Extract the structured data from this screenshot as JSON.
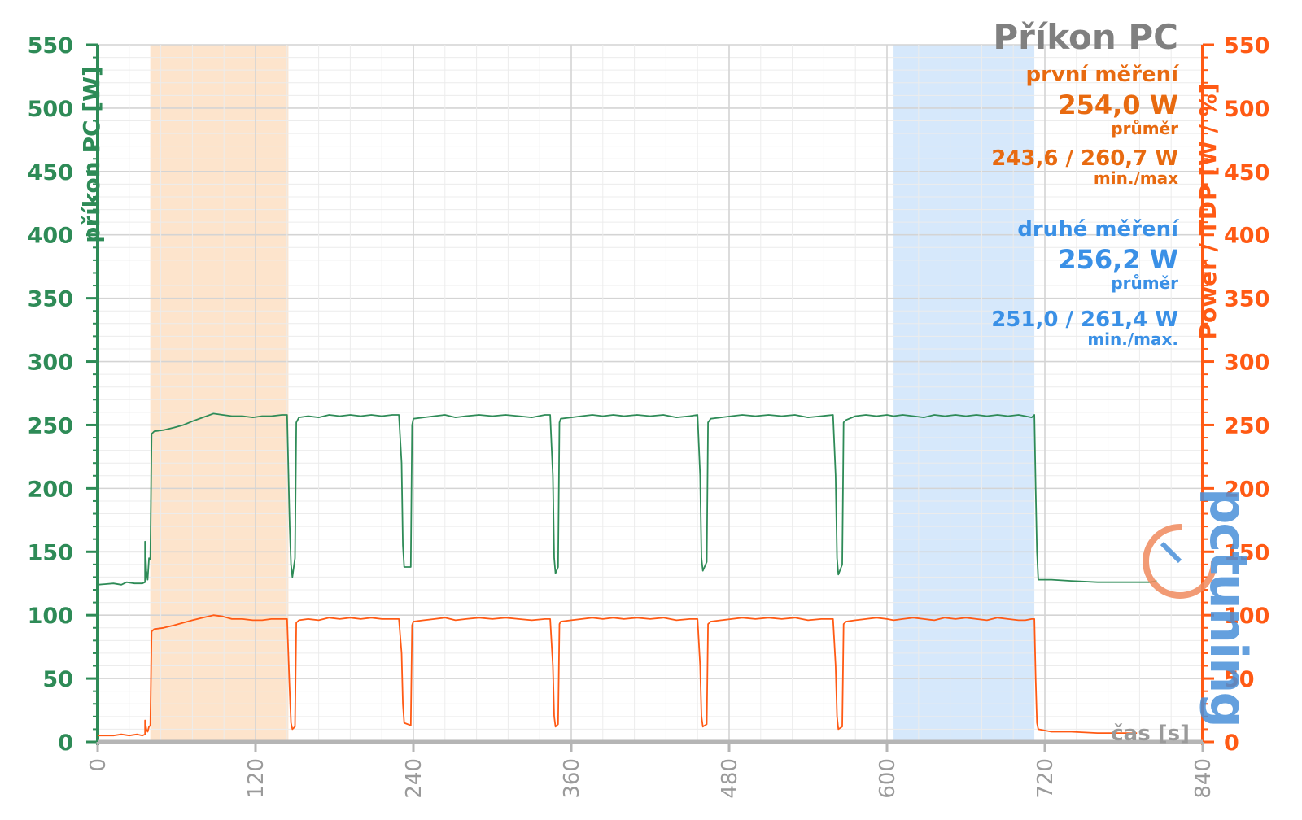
{
  "chart_data": {
    "type": "line",
    "title": "Příkon PC",
    "xlabel": "čas [s]",
    "ylabel_left": "příkon PC [W]",
    "ylabel_right": "Power / TDP [W / %]",
    "xlim": [
      0,
      840
    ],
    "ylim_left": [
      0,
      550
    ],
    "ylim_right": [
      0,
      550
    ],
    "x_ticks": [
      "0",
      "120",
      "240",
      "360",
      "480",
      "600",
      "720",
      "840"
    ],
    "y_ticks": [
      "0",
      "50",
      "100",
      "150",
      "200",
      "250",
      "300",
      "350",
      "400",
      "450",
      "500",
      "550"
    ],
    "grid": true,
    "highlight_ranges": [
      {
        "x": [
          40,
          145
        ],
        "color": "#fde4cc"
      },
      {
        "x": [
          605,
          712
        ],
        "color": "#d6e8fb"
      }
    ],
    "annotations": {
      "first": {
        "label": "první měření",
        "avg": "254,0 W",
        "avg_label": "průměr",
        "minmax": "243,6 / 260,7 W",
        "minmax_label": "min./max"
      },
      "second": {
        "label": "druhé měření",
        "avg": "256,2 W",
        "avg_label": "průměr",
        "minmax": "251,0 / 261,4 W",
        "minmax_label": "min./max."
      }
    },
    "logo_text": "pctuning",
    "series": [
      {
        "color": "#2e8b57",
        "axis": "left",
        "points": [
          [
            0,
            124
          ],
          [
            12,
            125
          ],
          [
            18,
            124
          ],
          [
            22,
            126
          ],
          [
            28,
            125
          ],
          [
            34,
            125
          ],
          [
            36,
            126
          ],
          [
            36,
            158
          ],
          [
            37,
            135
          ],
          [
            38,
            128
          ],
          [
            39,
            145
          ],
          [
            40,
            144
          ],
          [
            41,
            243
          ],
          [
            43,
            245
          ],
          [
            50,
            246
          ],
          [
            58,
            248
          ],
          [
            65,
            250
          ],
          [
            72,
            253
          ],
          [
            80,
            256
          ],
          [
            88,
            259
          ],
          [
            95,
            258
          ],
          [
            102,
            257
          ],
          [
            110,
            257
          ],
          [
            118,
            256
          ],
          [
            125,
            257
          ],
          [
            132,
            257
          ],
          [
            140,
            258
          ],
          [
            144,
            258
          ],
          [
            146,
            170
          ],
          [
            147,
            140
          ],
          [
            148,
            130
          ],
          [
            150,
            145
          ],
          [
            151,
            252
          ],
          [
            153,
            256
          ],
          [
            160,
            257
          ],
          [
            168,
            256
          ],
          [
            176,
            258
          ],
          [
            184,
            257
          ],
          [
            192,
            258
          ],
          [
            200,
            257
          ],
          [
            208,
            258
          ],
          [
            216,
            257
          ],
          [
            224,
            258
          ],
          [
            229,
            258
          ],
          [
            231,
            220
          ],
          [
            232,
            155
          ],
          [
            233,
            138
          ],
          [
            238,
            138
          ],
          [
            239,
            250
          ],
          [
            240,
            255
          ],
          [
            248,
            256
          ],
          [
            256,
            257
          ],
          [
            264,
            258
          ],
          [
            272,
            256
          ],
          [
            280,
            257
          ],
          [
            290,
            258
          ],
          [
            300,
            257
          ],
          [
            310,
            258
          ],
          [
            320,
            257
          ],
          [
            330,
            256
          ],
          [
            340,
            258
          ],
          [
            344,
            258
          ],
          [
            346,
            210
          ],
          [
            347,
            145
          ],
          [
            348,
            133
          ],
          [
            350,
            138
          ],
          [
            351,
            252
          ],
          [
            352,
            255
          ],
          [
            360,
            256
          ],
          [
            368,
            257
          ],
          [
            376,
            258
          ],
          [
            384,
            257
          ],
          [
            392,
            258
          ],
          [
            400,
            257
          ],
          [
            410,
            258
          ],
          [
            420,
            257
          ],
          [
            430,
            258
          ],
          [
            440,
            256
          ],
          [
            450,
            257
          ],
          [
            456,
            258
          ],
          [
            458,
            210
          ],
          [
            459,
            145
          ],
          [
            460,
            135
          ],
          [
            463,
            142
          ],
          [
            464,
            252
          ],
          [
            466,
            255
          ],
          [
            474,
            256
          ],
          [
            482,
            257
          ],
          [
            490,
            258
          ],
          [
            500,
            257
          ],
          [
            510,
            258
          ],
          [
            520,
            257
          ],
          [
            530,
            258
          ],
          [
            540,
            256
          ],
          [
            550,
            257
          ],
          [
            559,
            258
          ],
          [
            561,
            210
          ],
          [
            562,
            145
          ],
          [
            563,
            132
          ],
          [
            566,
            140
          ],
          [
            567,
            252
          ],
          [
            569,
            254
          ],
          [
            576,
            257
          ],
          [
            584,
            258
          ],
          [
            592,
            257
          ],
          [
            600,
            258
          ],
          [
            605,
            257
          ],
          [
            612,
            258
          ],
          [
            620,
            257
          ],
          [
            628,
            256
          ],
          [
            636,
            258
          ],
          [
            644,
            257
          ],
          [
            652,
            258
          ],
          [
            660,
            257
          ],
          [
            668,
            258
          ],
          [
            676,
            257
          ],
          [
            684,
            258
          ],
          [
            692,
            257
          ],
          [
            700,
            258
          ],
          [
            705,
            257
          ],
          [
            710,
            256
          ],
          [
            712,
            258
          ],
          [
            713,
            200
          ],
          [
            714,
            150
          ],
          [
            715,
            128
          ],
          [
            725,
            128
          ],
          [
            740,
            127
          ],
          [
            760,
            126
          ],
          [
            780,
            126
          ],
          [
            800,
            126
          ],
          [
            805,
            127
          ]
        ]
      },
      {
        "color": "#ff5a14",
        "axis": "right",
        "points": [
          [
            0,
            5
          ],
          [
            12,
            5
          ],
          [
            18,
            6
          ],
          [
            24,
            5
          ],
          [
            30,
            6
          ],
          [
            34,
            5
          ],
          [
            36,
            6
          ],
          [
            36,
            17
          ],
          [
            37,
            10
          ],
          [
            38,
            8
          ],
          [
            39,
            12
          ],
          [
            40,
            13
          ],
          [
            41,
            87
          ],
          [
            43,
            89
          ],
          [
            50,
            90
          ],
          [
            58,
            92
          ],
          [
            65,
            94
          ],
          [
            72,
            96
          ],
          [
            80,
            98
          ],
          [
            88,
            100
          ],
          [
            95,
            99
          ],
          [
            102,
            97
          ],
          [
            110,
            97
          ],
          [
            118,
            96
          ],
          [
            125,
            96
          ],
          [
            132,
            97
          ],
          [
            140,
            97
          ],
          [
            144,
            97
          ],
          [
            146,
            40
          ],
          [
            147,
            15
          ],
          [
            148,
            10
          ],
          [
            150,
            12
          ],
          [
            151,
            94
          ],
          [
            153,
            96
          ],
          [
            160,
            97
          ],
          [
            168,
            96
          ],
          [
            176,
            98
          ],
          [
            184,
            97
          ],
          [
            192,
            98
          ],
          [
            200,
            97
          ],
          [
            208,
            98
          ],
          [
            216,
            97
          ],
          [
            224,
            97
          ],
          [
            229,
            97
          ],
          [
            231,
            70
          ],
          [
            232,
            30
          ],
          [
            233,
            15
          ],
          [
            238,
            13
          ],
          [
            239,
            92
          ],
          [
            240,
            95
          ],
          [
            248,
            96
          ],
          [
            256,
            97
          ],
          [
            264,
            98
          ],
          [
            272,
            96
          ],
          [
            280,
            97
          ],
          [
            290,
            98
          ],
          [
            300,
            97
          ],
          [
            310,
            98
          ],
          [
            320,
            97
          ],
          [
            330,
            96
          ],
          [
            340,
            97
          ],
          [
            344,
            97
          ],
          [
            346,
            60
          ],
          [
            347,
            20
          ],
          [
            348,
            12
          ],
          [
            350,
            14
          ],
          [
            351,
            93
          ],
          [
            352,
            95
          ],
          [
            360,
            96
          ],
          [
            368,
            97
          ],
          [
            376,
            98
          ],
          [
            384,
            97
          ],
          [
            392,
            98
          ],
          [
            400,
            97
          ],
          [
            410,
            98
          ],
          [
            420,
            97
          ],
          [
            430,
            98
          ],
          [
            440,
            96
          ],
          [
            450,
            97
          ],
          [
            456,
            97
          ],
          [
            458,
            60
          ],
          [
            459,
            20
          ],
          [
            460,
            12
          ],
          [
            463,
            14
          ],
          [
            464,
            93
          ],
          [
            466,
            95
          ],
          [
            474,
            96
          ],
          [
            482,
            97
          ],
          [
            490,
            98
          ],
          [
            500,
            97
          ],
          [
            510,
            98
          ],
          [
            520,
            97
          ],
          [
            530,
            98
          ],
          [
            540,
            96
          ],
          [
            550,
            97
          ],
          [
            559,
            97
          ],
          [
            561,
            60
          ],
          [
            562,
            20
          ],
          [
            563,
            10
          ],
          [
            566,
            12
          ],
          [
            567,
            93
          ],
          [
            569,
            95
          ],
          [
            576,
            96
          ],
          [
            584,
            97
          ],
          [
            592,
            98
          ],
          [
            600,
            97
          ],
          [
            605,
            96
          ],
          [
            612,
            97
          ],
          [
            620,
            98
          ],
          [
            628,
            97
          ],
          [
            636,
            96
          ],
          [
            644,
            98
          ],
          [
            652,
            97
          ],
          [
            660,
            98
          ],
          [
            668,
            97
          ],
          [
            676,
            96
          ],
          [
            684,
            98
          ],
          [
            692,
            97
          ],
          [
            700,
            96
          ],
          [
            705,
            96
          ],
          [
            710,
            97
          ],
          [
            712,
            97
          ],
          [
            713,
            50
          ],
          [
            714,
            15
          ],
          [
            715,
            10
          ],
          [
            725,
            8
          ],
          [
            740,
            8
          ],
          [
            760,
            7
          ],
          [
            780,
            7
          ],
          [
            790,
            7
          ]
        ]
      }
    ]
  }
}
